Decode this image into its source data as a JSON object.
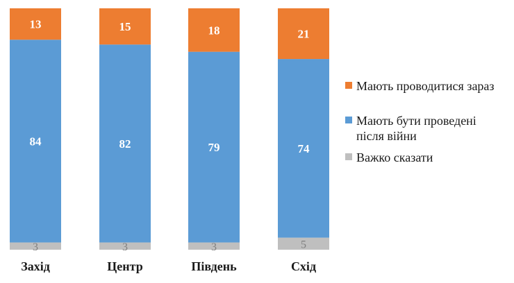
{
  "chart_data": {
    "type": "bar",
    "stacked": true,
    "percent": true,
    "categories": [
      "Захід",
      "Центр",
      "Південь",
      "Схід"
    ],
    "series": [
      {
        "name": "Важко сказати",
        "color": "#bfbfbf",
        "values": [
          3,
          3,
          3,
          5
        ]
      },
      {
        "name": "Мають бути проведені після війни",
        "name_lines": [
          "Мають бути проведені",
          "після війни"
        ],
        "color": "#5b9bd5",
        "values": [
          84,
          82,
          79,
          74
        ]
      },
      {
        "name": "Мають проводитися зараз",
        "color": "#ed7d31",
        "values": [
          13,
          15,
          18,
          21
        ]
      }
    ],
    "legend_order": [
      2,
      1,
      0
    ],
    "legend_position": "right",
    "ylim": [
      0,
      100
    ],
    "grid": false
  }
}
